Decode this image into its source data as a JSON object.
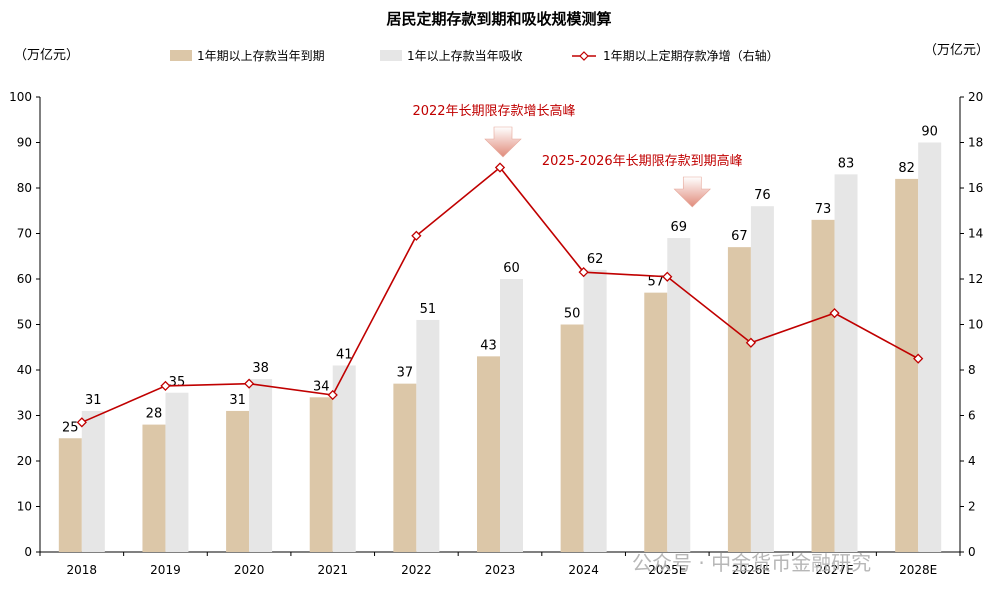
{
  "chart_data": {
    "type": "bar",
    "title": "居民定期存款到期和吸收规模测算",
    "left_unit": "（万亿元）",
    "right_unit": "（万亿元）",
    "categories": [
      "2018",
      "2019",
      "2020",
      "2021",
      "2022",
      "2023",
      "2024",
      "2025E",
      "2026E",
      "2027E",
      "2028E"
    ],
    "series": [
      {
        "name": "1年期以上存款当年到期",
        "kind": "bar",
        "axis": "left",
        "color": "#dcc7a8",
        "values": [
          25,
          28,
          31,
          34,
          37,
          43,
          50,
          57,
          67,
          73,
          82
        ],
        "labels": [
          "25",
          "28",
          "31",
          "34",
          "37",
          "43",
          "50",
          "57",
          "67",
          "73",
          "82"
        ]
      },
      {
        "name": "1年以上存款当年吸收",
        "kind": "bar",
        "axis": "left",
        "color": "#e6e6e6",
        "values": [
          31,
          35,
          38,
          41,
          51,
          60,
          62,
          69,
          76,
          83,
          90
        ],
        "labels": [
          "31",
          "35",
          "38",
          "41",
          "51",
          "60",
          "62",
          "69",
          "76",
          "83",
          "90"
        ]
      },
      {
        "name": "1年期以上定期存款净增（右轴）",
        "kind": "line",
        "axis": "right",
        "color": "#c00000",
        "values": [
          5.7,
          7.3,
          7.4,
          6.9,
          13.9,
          16.9,
          12.3,
          12.1,
          9.2,
          10.5,
          8.5
        ]
      }
    ],
    "ylim_left": [
      0,
      100
    ],
    "yticks_left": [
      0,
      10,
      20,
      30,
      40,
      50,
      60,
      70,
      80,
      90,
      100
    ],
    "ylim_right": [
      0,
      20
    ],
    "yticks_right": [
      0,
      2,
      4,
      6,
      8,
      10,
      12,
      14,
      16,
      18,
      20
    ],
    "grid": false,
    "legend_position": "top",
    "annotations": [
      {
        "text": "2022年长期限存款增长高峰",
        "category": "2023"
      },
      {
        "text": "2025-2026年长期限存款到期高峰",
        "category": "2025E"
      }
    ],
    "watermark": "公众号 · 中金货币金融研究"
  }
}
